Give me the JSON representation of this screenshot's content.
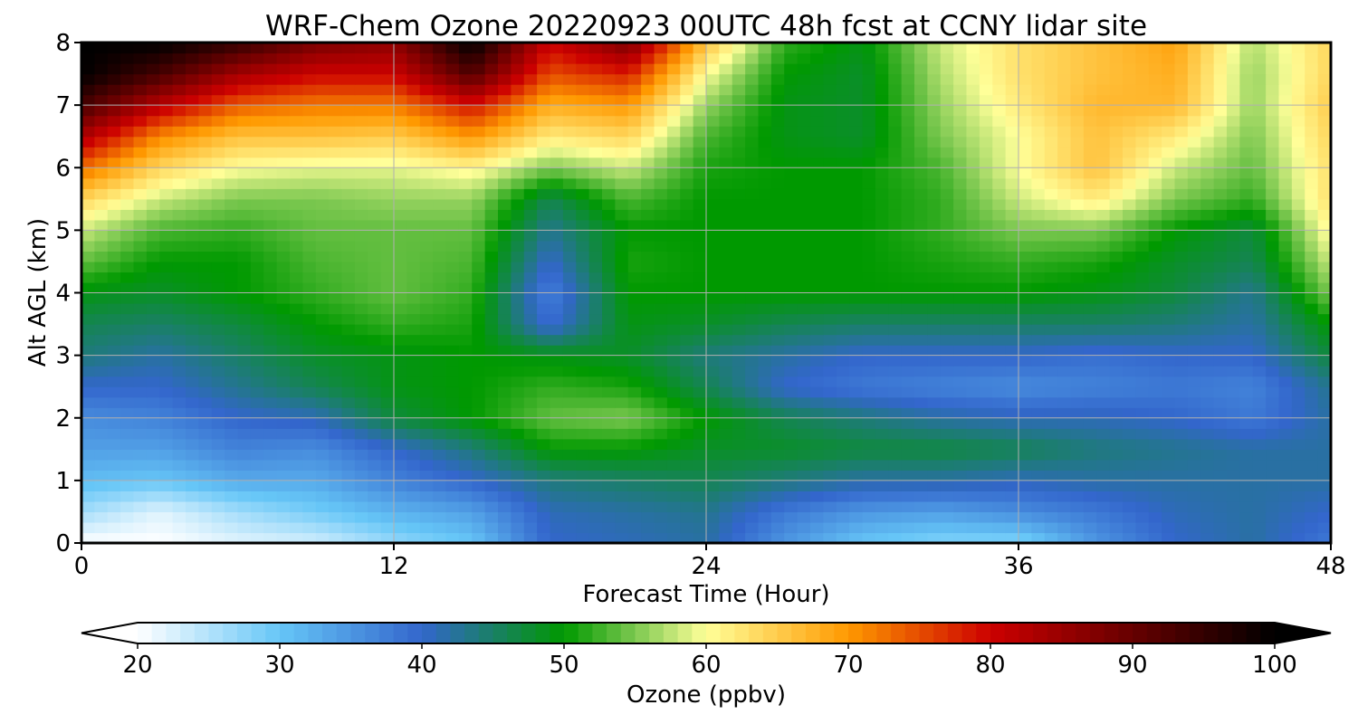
{
  "chart_data": {
    "type": "heatmap",
    "title": "WRF-Chem Ozone  20220923 00UTC 48h fcst at CCNY lidar site",
    "xlabel": "Forecast Time (Hour)",
    "ylabel": "Alt AGL (km)",
    "xlim": [
      0,
      48
    ],
    "ylim": [
      0,
      8
    ],
    "xticks": [
      "0",
      "12",
      "24",
      "36",
      "48"
    ],
    "yticks": [
      "0",
      "1",
      "2",
      "3",
      "4",
      "5",
      "6",
      "7",
      "8"
    ],
    "grid": true,
    "colorbar": {
      "label": "Ozone  (ppbv)",
      "range": [
        20,
        100
      ],
      "ticks": [
        "20",
        "30",
        "40",
        "50",
        "60",
        "70",
        "80",
        "90",
        "100"
      ],
      "extend": "both",
      "colors": {
        "20": "#ffffff",
        "30": "#66c6f7",
        "40": "#3366cc",
        "50": "#009900",
        "55": "#7cc850",
        "60": "#ffff99",
        "70": "#ff9900",
        "80": "#cc0000",
        "90": "#660000",
        "100": "#000000"
      }
    },
    "heights_km": [
      0,
      0.5,
      1,
      1.5,
      2,
      2.5,
      3,
      3.5,
      4,
      4.5,
      5,
      5.5,
      6,
      6.5,
      7,
      7.5,
      8
    ],
    "hours": [
      0,
      3,
      6,
      9,
      12,
      15,
      18,
      21,
      24,
      27,
      30,
      33,
      36,
      39,
      42,
      45,
      48
    ],
    "ozone_ppbv": [
      [
        20,
        20,
        22,
        23,
        27,
        30,
        40,
        41,
        42,
        35,
        30,
        28,
        28,
        35,
        40,
        42,
        38
      ],
      [
        26,
        22,
        26,
        29,
        32,
        34,
        41,
        42,
        43,
        38,
        35,
        34,
        36,
        38,
        41,
        42,
        40
      ],
      [
        31,
        30,
        33,
        33,
        37,
        40,
        44,
        45,
        46,
        44,
        42,
        42,
        41,
        42,
        42,
        42,
        42
      ],
      [
        34,
        34,
        37,
        36,
        40,
        44,
        50,
        50,
        48,
        48,
        47,
        47,
        46,
        44,
        43,
        42,
        42
      ],
      [
        36,
        37,
        40,
        41,
        47,
        50,
        54,
        55,
        50,
        46,
        44,
        42,
        41,
        41,
        40,
        38,
        42
      ],
      [
        40,
        40,
        43,
        46,
        49,
        50,
        52,
        51,
        46,
        40,
        38,
        37,
        36,
        37,
        38,
        37,
        43
      ],
      [
        44,
        42,
        45,
        48,
        49,
        50,
        49,
        48,
        44,
        42,
        40,
        40,
        40,
        39,
        40,
        40,
        47
      ],
      [
        46,
        45,
        47,
        50,
        52,
        51,
        39,
        49,
        48,
        46,
        45,
        45,
        45,
        45,
        44,
        42,
        50
      ],
      [
        49,
        48,
        50,
        52,
        54,
        52,
        37,
        50,
        50,
        50,
        50,
        50,
        50,
        49,
        47,
        43,
        55
      ],
      [
        54,
        50,
        50,
        53,
        54,
        53,
        40,
        51,
        50,
        50,
        50,
        51,
        52,
        51,
        48,
        46,
        58
      ],
      [
        58,
        53,
        52,
        54,
        54,
        54,
        43,
        50,
        50,
        50,
        50,
        52,
        55,
        55,
        50,
        47,
        61
      ],
      [
        64,
        58,
        55,
        55,
        56,
        56,
        46,
        53,
        50,
        50,
        50,
        52,
        58,
        62,
        55,
        52,
        63
      ],
      [
        73,
        64,
        60,
        59,
        59,
        61,
        55,
        58,
        51,
        50,
        50,
        53,
        60,
        66,
        58,
        54,
        63
      ],
      [
        83,
        71,
        66,
        66,
        65,
        70,
        62,
        64,
        53,
        49,
        48,
        55,
        60,
        66,
        62,
        55,
        64
      ],
      [
        93,
        82,
        74,
        72,
        72,
        79,
        68,
        70,
        56,
        49,
        48,
        56,
        62,
        67,
        67,
        56,
        65
      ],
      [
        100,
        93,
        84,
        80,
        80,
        92,
        75,
        78,
        60,
        50,
        48,
        57,
        63,
        66,
        68,
        56,
        64
      ],
      [
        100,
        100,
        95,
        88,
        86,
        100,
        80,
        88,
        66,
        52,
        49,
        58,
        63,
        66,
        69,
        57,
        64
      ]
    ]
  }
}
